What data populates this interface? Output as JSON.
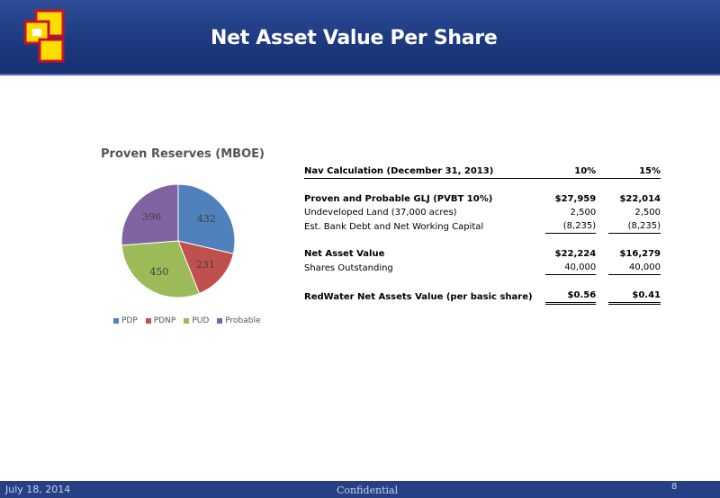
{
  "header": {
    "title": "Net Asset Value Per Share",
    "logo_colors": [
      "#ffdd00",
      "#c8102e",
      "#ffffff"
    ]
  },
  "chart_data": {
    "type": "pie",
    "title": "Proven Reserves (MBOE)",
    "categories": [
      "PDP",
      "PDNP",
      "PUD",
      "Probable"
    ],
    "values": [
      432,
      231,
      450,
      396
    ],
    "colors": [
      "#4f81bd",
      "#c0504d",
      "#9bbb59",
      "#8064a2"
    ],
    "legend_position": "bottom"
  },
  "table": {
    "header": {
      "label": "Nav Calculation (December 31, 2013)",
      "col1": "10%",
      "col2": "15%"
    },
    "rows": [
      {
        "label": "Proven and Probable GLJ (PVBT 10%)",
        "col1": "$27,959",
        "col2": "$22,014"
      },
      {
        "label": "Undeveloped Land (37,000 acres)",
        "col1": "2,500",
        "col2": "2,500"
      },
      {
        "label": "Est. Bank Debt and Net Working Capital",
        "col1": "(8,235)",
        "col2": "(8,235)"
      },
      {
        "label": "Net Asset Value",
        "col1": "$22,224",
        "col2": "$16,279"
      },
      {
        "label": "Shares Outstanding",
        "col1": "40,000",
        "col2": "40,000"
      },
      {
        "label": "RedWater Net Assets Value (per basic share)",
        "col1": "$0.56",
        "col2": "$0.41"
      }
    ]
  },
  "footer": {
    "date": "July 18, 2014",
    "confidential": "Confidential",
    "page": "8"
  }
}
